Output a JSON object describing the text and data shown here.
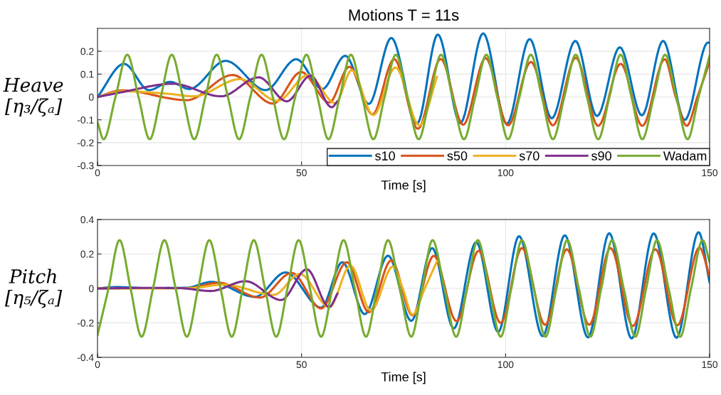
{
  "chart_data": [
    {
      "type": "line",
      "title": "Motions T = 11s",
      "xlabel": "Time [s]",
      "ylabel": "Heave\n[η₃/ζₐ]",
      "xlim": [
        0,
        150
      ],
      "xticks": [
        0,
        50,
        100,
        150
      ],
      "ylim": [
        -0.3,
        0.3
      ],
      "yticks": [
        -0.3,
        -0.2,
        -0.1,
        0,
        0.1,
        0.2
      ],
      "grid": true,
      "legend": "bottom right",
      "line_style": "solid",
      "marker": "none",
      "series": [
        {
          "name": "s10",
          "color": "#0072bd",
          "x": [
            0,
            6.5,
            12.6,
            17.8,
            22.5,
            31.4,
            41.2,
            48.7,
            55.1,
            60.7,
            66.5,
            72.0,
            78.3,
            83.4,
            88.9,
            94.5,
            100.3,
            105.9,
            111.3,
            117.1,
            122.4,
            128.0,
            133.4,
            138.6,
            143.9,
            149.6,
            150
          ],
          "values": [
            0,
            0.145,
            0.03,
            0.066,
            0.035,
            0.158,
            0.03,
            0.165,
            0.035,
            0.18,
            -0.03,
            0.258,
            -0.116,
            0.273,
            -0.114,
            0.278,
            -0.117,
            0.253,
            -0.093,
            0.245,
            -0.083,
            0.217,
            -0.08,
            0.245,
            -0.1,
            0.238,
            0.237
          ]
        },
        {
          "name": "s50",
          "color": "#d95319",
          "x": [
            0,
            6.0,
            21.9,
            33.1,
            43.0,
            49.9,
            56.8,
            61.7,
            67.4,
            72.7,
            78.5,
            84.1,
            89.6,
            95.1,
            100.6,
            106.2,
            111.6,
            117.2,
            122.7,
            128.2,
            133.5,
            139.0,
            141.7,
            144.4,
            147.0,
            150
          ],
          "values": [
            0,
            0.029,
            -0.014,
            0.096,
            -0.029,
            0.109,
            -0.024,
            0.132,
            -0.076,
            0.165,
            -0.139,
            0.166,
            -0.121,
            0.17,
            -0.124,
            0.153,
            -0.124,
            0.171,
            -0.126,
            0.145,
            -0.126,
            0.165,
            0,
            -0.126,
            0,
            0.153
          ]
        },
        {
          "name": "s70",
          "color": "#edb120",
          "x": [
            0,
            6.3,
            17.3,
            23.6,
            34.9,
            44.1,
            51.6,
            58.3,
            62.3,
            67.6,
            73.0,
            78.9,
            83.2
          ],
          "values": [
            0,
            0.025,
            0.014,
            0.003,
            0.078,
            -0.017,
            0.096,
            -0.027,
            0.117,
            -0.079,
            0.129,
            -0.124,
            0.088
          ]
        },
        {
          "name": "s90",
          "color": "#7e2f8e",
          "x": [
            0,
            6.3,
            18.4,
            30.3,
            39.5,
            46.4,
            52.2,
            57.4,
            58.8
          ],
          "values": [
            0,
            0.022,
            0.058,
            0.003,
            0.086,
            -0.019,
            0.093,
            -0.045,
            -0.019
          ]
        },
        {
          "name": "Wadam",
          "color": "#77ac30",
          "x": [
            0,
            1.5,
            4.4,
            7.3,
            10.05,
            12.8,
            15.5,
            18.2,
            20.95,
            23.7,
            26.45,
            29.2,
            31.95,
            34.7,
            37.45,
            40.2,
            42.95,
            45.7,
            48.45,
            51.2,
            53.9,
            56.6,
            59.35,
            62.1,
            64.85,
            67.6,
            70.35,
            73.1,
            75.9,
            78.7,
            81.45,
            84.2,
            87.0,
            89.8,
            92.55,
            95.3,
            97.95,
            100.6,
            103.4,
            106.2,
            108.9,
            111.6,
            114.4,
            117.2,
            119.95,
            122.7,
            125.45,
            128.2,
            130.85,
            133.5,
            136.3,
            139.1,
            141.85,
            144.6,
            147.3,
            150
          ],
          "values": [
            -0.11,
            -0.185,
            0,
            0.185,
            0,
            -0.185,
            0,
            0.185,
            0,
            -0.185,
            0,
            0.185,
            0,
            -0.185,
            0,
            0.185,
            0,
            -0.185,
            0,
            0.185,
            0,
            -0.185,
            0,
            0.185,
            0,
            -0.185,
            0,
            0.185,
            0,
            -0.185,
            0,
            0.185,
            0,
            -0.185,
            0,
            0.185,
            0,
            -0.185,
            0,
            0.185,
            0,
            -0.185,
            0,
            0.185,
            0,
            -0.185,
            0,
            0.185,
            0,
            -0.185,
            0,
            0.185,
            0,
            -0.185,
            0,
            0.18
          ]
        }
      ]
    },
    {
      "type": "line",
      "xlabel": "Time [s]",
      "ylabel": "Pitch\n[η₅/ζₐ]",
      "xlim": [
        0,
        150
      ],
      "xticks": [
        0,
        50,
        100,
        150
      ],
      "ylim": [
        -0.4,
        0.4
      ],
      "yticks": [
        -0.4,
        -0.2,
        0,
        0.2,
        0.4
      ],
      "grid": true,
      "line_style": "solid",
      "marker": "none",
      "series": [
        {
          "color": "#0072bd",
          "x": [
            0,
            4.6,
            12.0,
            21.9,
            27.9,
            38.6,
            46.1,
            54.8,
            60.0,
            65.5,
            71.2,
            76.9,
            82.0,
            87.3,
            92.8,
            98.2,
            103.3,
            109.1,
            114.5,
            120.2,
            125.4,
            130.9,
            136.3,
            141.9,
            147.3,
            150
          ],
          "values": [
            0,
            0.008,
            0.002,
            0.004,
            0.038,
            -0.049,
            0.093,
            -0.111,
            0.152,
            -0.149,
            0.19,
            -0.188,
            0.234,
            -0.232,
            0.268,
            -0.252,
            0.303,
            -0.277,
            0.308,
            -0.284,
            0.32,
            -0.29,
            0.319,
            -0.286,
            0.326,
            0.036
          ]
        },
        {
          "color": "#d95319",
          "x": [
            0,
            12.0,
            22.0,
            29.7,
            39.8,
            47.6,
            54.8,
            61.1,
            66.5,
            72.0,
            77.2,
            82.4,
            88.0,
            93.4,
            98.8,
            104.0,
            109.7,
            115.0,
            120.5,
            125.7,
            131.2,
            136.7,
            142.1,
            147.5,
            150
          ],
          "values": [
            0,
            0.002,
            0.002,
            0.033,
            -0.053,
            0.09,
            -0.116,
            0.152,
            -0.138,
            0.163,
            -0.156,
            0.189,
            -0.19,
            0.218,
            -0.2,
            0.234,
            -0.211,
            0.227,
            -0.211,
            0.234,
            -0.218,
            0.227,
            -0.214,
            0.237,
            0.07
          ]
        },
        {
          "color": "#edb120",
          "x": [
            0,
            12.0,
            22.0,
            31.1,
            43.2,
            49.6,
            56.8,
            62.0,
            67.0,
            72.4,
            74.8,
            77.2,
            80.2,
            83.2
          ],
          "values": [
            0,
            0.0,
            0.001,
            0.022,
            -0.037,
            0.084,
            -0.108,
            0.132,
            -0.129,
            0.127,
            0,
            -0.152,
            0,
            0.159
          ]
        },
        {
          "color": "#7e2f8e",
          "x": [
            0,
            12.0,
            20.0,
            27.7,
            36.3,
            45.0,
            51.3,
            56.8,
            58.8
          ],
          "values": [
            0,
            0.003,
            0.002,
            -0.015,
            0.042,
            -0.067,
            0.111,
            -0.108,
            -0.03
          ]
        },
        {
          "color": "#77ac30",
          "x": [
            0,
            2.7,
            5.4,
            8.1,
            10.8,
            13.6,
            16.4,
            19.15,
            21.9,
            24.65,
            27.4,
            30.15,
            32.9,
            35.6,
            38.3,
            41.05,
            43.8,
            46.55,
            49.3,
            52.05,
            54.8,
            57.55,
            60.3,
            63.05,
            65.8,
            68.5,
            71.2,
            74.05,
            76.9,
            79.5,
            82.1,
            85.0,
            87.9,
            90.55,
            93.2,
            96.0,
            98.8,
            101.4,
            104.0,
            106.9,
            109.8,
            112.45,
            115.1,
            117.95,
            120.8,
            123.45,
            126.1,
            128.95,
            131.8,
            134.45,
            137.1,
            139.95,
            142.8,
            145.45,
            148.3,
            150
          ],
          "values": [
            -0.27,
            0,
            0.28,
            0,
            -0.28,
            0,
            0.28,
            0,
            -0.28,
            0,
            0.28,
            0,
            -0.28,
            0,
            0.28,
            0,
            -0.28,
            0,
            0.28,
            0,
            -0.28,
            0,
            0.28,
            0,
            -0.28,
            0,
            0.28,
            0,
            -0.28,
            0,
            0.28,
            0,
            -0.28,
            0,
            0.28,
            0,
            -0.28,
            0,
            0.28,
            0,
            -0.28,
            0,
            0.28,
            0,
            -0.28,
            0,
            0.28,
            0,
            -0.28,
            0,
            0.28,
            0,
            -0.28,
            0,
            0.28,
            0.152
          ]
        }
      ]
    }
  ]
}
